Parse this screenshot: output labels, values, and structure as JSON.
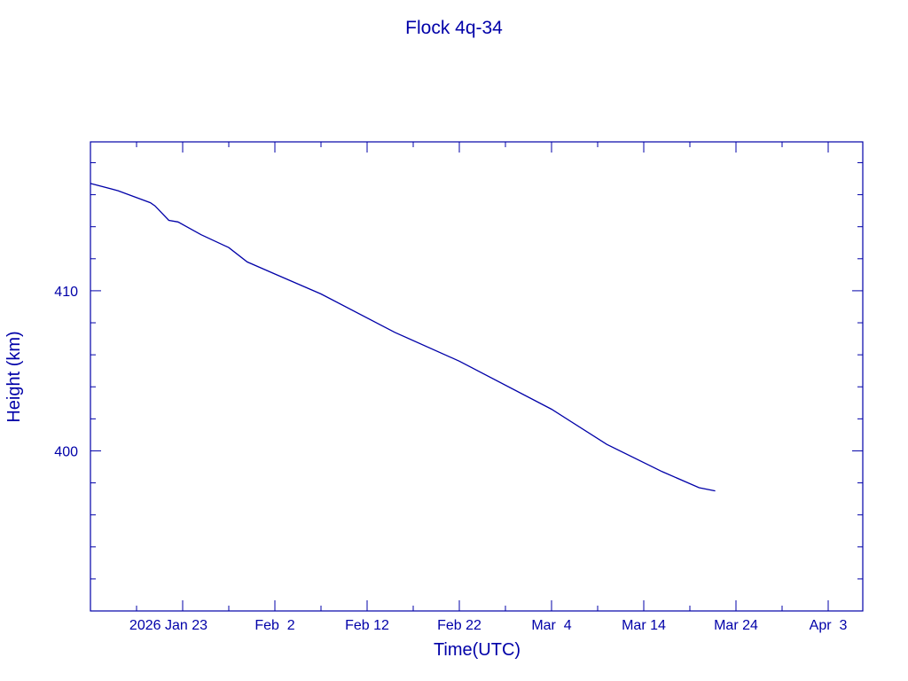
{
  "chart_data": {
    "type": "line",
    "title": "Flock 4q-34",
    "xlabel": "Time(UTC)",
    "ylabel": "Height (km)",
    "xlim": [
      "2026-01-13T00:00",
      "2026-04-06T18:00"
    ],
    "ylim": [
      390.0,
      419.3
    ],
    "x_major_ticks": [
      "2026-01-23",
      "2026-02-02",
      "2026-02-12",
      "2026-02-22",
      "2026-03-04",
      "2026-03-14",
      "2026-03-24",
      "2026-04-03"
    ],
    "x_tick_labels": [
      "2026 Jan 23",
      "Feb  2",
      "Feb 12",
      "Feb 22",
      "Mar  4",
      "Mar 14",
      "Mar 24",
      "Apr  3"
    ],
    "x_minor_tick_days": 5,
    "y_major_ticks": [
      400,
      410
    ],
    "y_tick_labels": [
      "400",
      "410"
    ],
    "y_minor_tick_step": 2,
    "grid": false,
    "line_color": "#0000a8",
    "series": [
      {
        "x": [
          "2026-01-13T00:00",
          "2026-01-16T00:00",
          "2026-01-19T12:00",
          "2026-01-20T00:00",
          "2026-01-21T12:00",
          "2026-01-22T12:00",
          "2026-01-25T00:00",
          "2026-01-28T00:00",
          "2026-01-30T00:00",
          "2026-02-02T00:00",
          "2026-02-05T00:00",
          "2026-02-07T00:00",
          "2026-02-15T00:00",
          "2026-02-22T00:00",
          "2026-03-04T00:00",
          "2026-03-10T00:00",
          "2026-03-16T00:00",
          "2026-03-20T00:00",
          "2026-03-21T18:00"
        ],
        "y": [
          416.7,
          416.25,
          415.5,
          415.3,
          414.4,
          414.3,
          413.5,
          412.7,
          411.8,
          411.05,
          410.3,
          409.8,
          407.4,
          405.6,
          402.6,
          400.4,
          398.7,
          397.7,
          397.5
        ]
      }
    ]
  }
}
